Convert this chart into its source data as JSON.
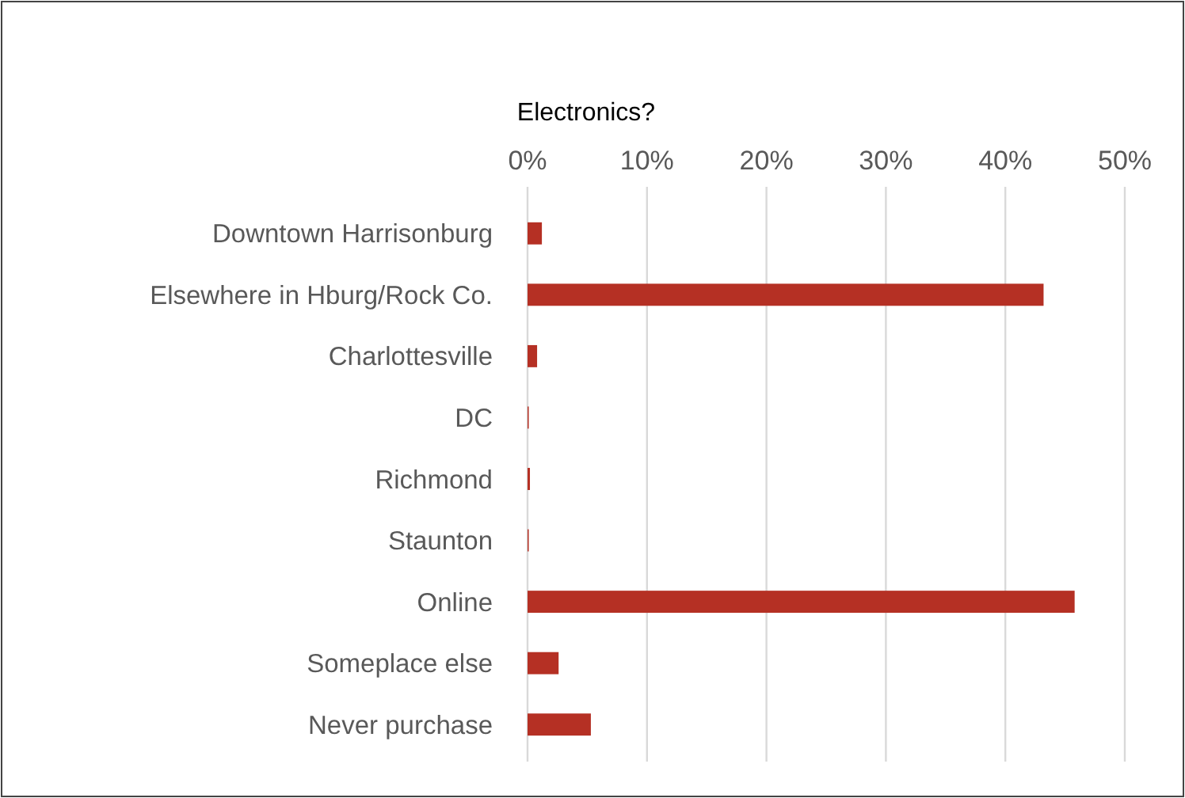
{
  "chart_data": {
    "type": "bar",
    "orientation": "horizontal",
    "title": "Electronics?",
    "categories": [
      "Downtown Harrisonburg",
      "Elsewhere in Hburg/Rock Co.",
      "Charlottesville",
      "DC",
      "Richmond",
      "Staunton",
      "Online",
      "Someplace else",
      "Never purchase"
    ],
    "values": [
      1.2,
      43.2,
      0.8,
      0.1,
      0.2,
      0.1,
      45.8,
      2.6,
      5.3
    ],
    "color": "#b53024",
    "xlim": [
      0,
      50
    ],
    "xticks": [
      {
        "value": 0,
        "label": "0%"
      },
      {
        "value": 10,
        "label": "10%"
      },
      {
        "value": 20,
        "label": "20%"
      },
      {
        "value": 30,
        "label": "30%"
      },
      {
        "value": 40,
        "label": "40%"
      },
      {
        "value": 50,
        "label": "50%"
      }
    ],
    "grid": "x"
  }
}
